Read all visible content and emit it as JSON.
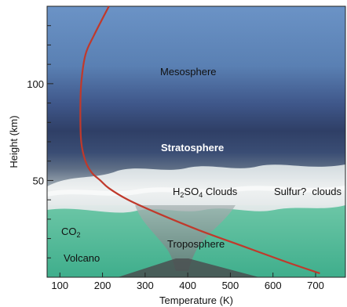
{
  "chart_data": {
    "type": "line",
    "xlabel": "Temperature (K)",
    "ylabel": "Height (km)",
    "xlim": [
      70,
      770
    ],
    "ylim": [
      0,
      140
    ],
    "xticks": [
      100,
      200,
      300,
      400,
      500,
      600,
      700
    ],
    "yticks": [
      50,
      100
    ],
    "series": [
      {
        "x": [
          215,
          180,
          160,
          150,
          148,
          150,
          160,
          175,
          195,
          215,
          260,
          330,
          430,
          530,
          630,
          710
        ],
        "y": [
          140,
          125,
          115,
          100,
          85,
          70,
          60,
          54,
          50,
          46,
          40,
          33,
          24,
          16,
          8,
          2
        ]
      }
    ],
    "colors": {
      "curve": "#c0392b",
      "mesosphere": "#5d82b2",
      "stratosphere": "#3a4f7a",
      "clouds": "#e6ecee",
      "troposphere": "#4fb89a"
    },
    "regions": {
      "mesosphere": "Mesosphere",
      "stratosphere": "Stratosphere",
      "clouds_prefix": "H",
      "clouds_sub1": "2",
      "clouds_mid": "SO",
      "clouds_sub2": "4",
      "clouds_suffix": " Clouds",
      "sulfur": "Sulfur?  clouds",
      "troposphere": "Troposphere",
      "co2_main": "CO",
      "co2_sub": "2",
      "volcano": "Volcano"
    }
  }
}
